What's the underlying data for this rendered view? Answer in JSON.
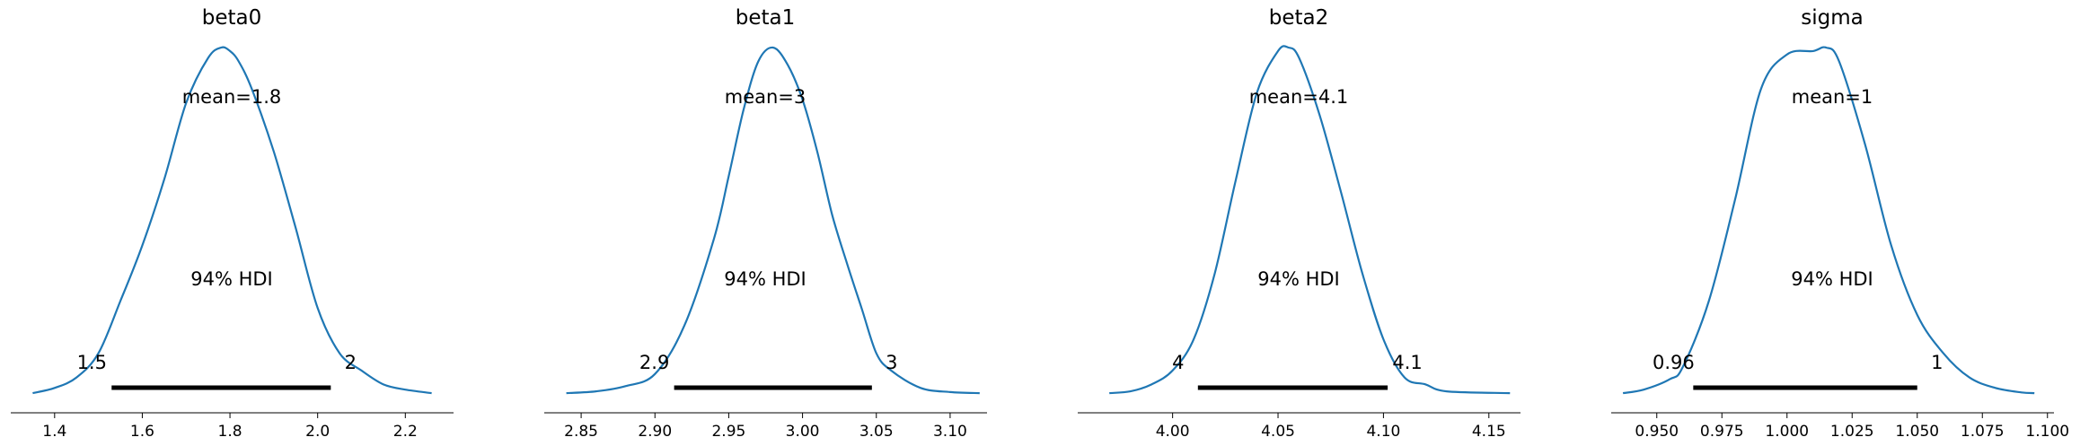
{
  "chart_data": [
    {
      "type": "line",
      "title": "beta0",
      "mean_label": "mean=1.8",
      "hdi_label": "94% HDI",
      "hdi_low_label": "1.5",
      "hdi_high_label": "2",
      "hdi": [
        1.53,
        2.03
      ],
      "xlim": [
        1.3,
        2.31
      ],
      "ticks": [
        1.4,
        1.6,
        1.8,
        2.0,
        2.2
      ],
      "tick_labels": [
        "1.4",
        "1.6",
        "1.8",
        "2.0",
        "2.2"
      ],
      "density": {
        "x": [
          1.35,
          1.4,
          1.45,
          1.5,
          1.55,
          1.6,
          1.65,
          1.7,
          1.75,
          1.78,
          1.8,
          1.82,
          1.85,
          1.9,
          1.95,
          2.0,
          2.05,
          2.1,
          2.15,
          2.2,
          2.26
        ],
        "y": [
          0.005,
          0.02,
          0.05,
          0.12,
          0.27,
          0.43,
          0.62,
          0.84,
          0.97,
          1.0,
          0.99,
          0.96,
          0.88,
          0.7,
          0.48,
          0.25,
          0.12,
          0.07,
          0.03,
          0.015,
          0.005
        ]
      }
    },
    {
      "type": "line",
      "title": "beta1",
      "mean_label": "mean=3",
      "hdi_label": "94% HDI",
      "hdi_low_label": "2.9",
      "hdi_high_label": "3",
      "hdi": [
        2.913,
        3.047
      ],
      "xlim": [
        2.825,
        3.125
      ],
      "ticks": [
        2.85,
        2.9,
        2.95,
        3.0,
        3.05,
        3.1
      ],
      "tick_labels": [
        "2.85",
        "2.90",
        "2.95",
        "3.00",
        "3.05",
        "3.10"
      ],
      "density": {
        "x": [
          2.84,
          2.86,
          2.88,
          2.9,
          2.92,
          2.94,
          2.95,
          2.96,
          2.97,
          2.98,
          2.99,
          3.0,
          3.01,
          3.02,
          3.03,
          3.04,
          3.05,
          3.06,
          3.08,
          3.1,
          3.12
        ],
        "y": [
          0.005,
          0.01,
          0.025,
          0.06,
          0.2,
          0.45,
          0.63,
          0.82,
          0.96,
          1.0,
          0.95,
          0.85,
          0.7,
          0.52,
          0.38,
          0.25,
          0.12,
          0.07,
          0.02,
          0.008,
          0.005
        ]
      }
    },
    {
      "type": "line",
      "title": "beta2",
      "mean_label": "mean=4.1",
      "hdi_label": "94% HDI",
      "hdi_low_label": "4",
      "hdi_high_label": "4.1",
      "hdi": [
        4.012,
        4.102
      ],
      "xlim": [
        3.955,
        4.165
      ],
      "ticks": [
        4.0,
        4.05,
        4.1,
        4.15
      ],
      "tick_labels": [
        "4.00",
        "4.05",
        "4.10",
        "4.15"
      ],
      "density": {
        "x": [
          3.97,
          3.98,
          3.99,
          4.0,
          4.01,
          4.02,
          4.03,
          4.04,
          4.05,
          4.055,
          4.06,
          4.07,
          4.08,
          4.09,
          4.1,
          4.11,
          4.12,
          4.13,
          4.16
        ],
        "y": [
          0.005,
          0.01,
          0.03,
          0.07,
          0.16,
          0.35,
          0.62,
          0.87,
          0.99,
          1.0,
          0.97,
          0.8,
          0.58,
          0.35,
          0.16,
          0.05,
          0.03,
          0.01,
          0.005
        ]
      }
    },
    {
      "type": "line",
      "title": "sigma",
      "mean_label": "mean=1",
      "hdi_label": "94% HDI",
      "hdi_low_label": "0.96",
      "hdi_high_label": "1",
      "hdi": [
        0.964,
        1.05
      ],
      "xlim": [
        0.9325,
        1.1025
      ],
      "ticks": [
        0.95,
        0.975,
        1.0,
        1.025,
        1.05,
        1.075,
        1.1
      ],
      "tick_labels": [
        "0.950",
        "0.975",
        "1.000",
        "1.025",
        "1.050",
        "1.075",
        "1.100"
      ],
      "density": {
        "x": [
          0.937,
          0.945,
          0.955,
          0.96,
          0.97,
          0.98,
          0.99,
          1.0,
          1.01,
          1.015,
          1.02,
          1.03,
          1.04,
          1.05,
          1.06,
          1.07,
          1.08,
          1.09,
          1.095
        ],
        "y": [
          0.005,
          0.015,
          0.045,
          0.08,
          0.27,
          0.56,
          0.88,
          0.98,
          0.99,
          1.0,
          0.96,
          0.72,
          0.43,
          0.23,
          0.12,
          0.05,
          0.02,
          0.007,
          0.005
        ]
      }
    }
  ]
}
